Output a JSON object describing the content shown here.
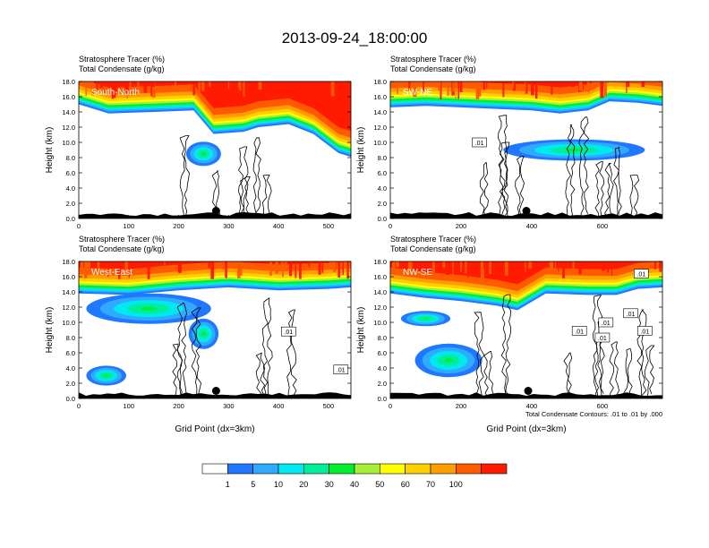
{
  "title": "2013-09-24_18:00:00",
  "colors": {
    "levels": [
      "#ffffff",
      "#1f78ff",
      "#2faaff",
      "#00e8f0",
      "#00ee9a",
      "#00ee2e",
      "#a8ef3a",
      "#ffff00",
      "#ffd000",
      "#ff9e00",
      "#ff5a00",
      "#ff1a00"
    ],
    "contour": "#000000",
    "ground": "#000000"
  },
  "chart_data": [
    {
      "type": "heatmap",
      "label": "South-North",
      "header": [
        "Stratosphere Tracer   (%)",
        "Total Condensate   (g/kg)"
      ],
      "ylabel": "Height (km)",
      "xlabel": "",
      "xlim": [
        0,
        545
      ],
      "ylim": [
        0,
        18
      ],
      "xticks": [
        "0",
        "100",
        "200",
        "300",
        "400",
        "500"
      ],
      "yticks": [
        "0.0",
        "2.0",
        "4.0",
        "6.0",
        "8.0",
        "10.0",
        "12.0",
        "14.0",
        "16.0",
        "18.0"
      ],
      "tropopause_km": [
        [
          0,
          15.4
        ],
        [
          60,
          14.2
        ],
        [
          150,
          14.4
        ],
        [
          230,
          14.6
        ],
        [
          270,
          11.5
        ],
        [
          330,
          11.8
        ],
        [
          360,
          12.4
        ],
        [
          420,
          12.8
        ],
        [
          470,
          11.5
        ],
        [
          520,
          9.0
        ],
        [
          545,
          8.5
        ]
      ],
      "contour_labels": [],
      "blobs": [
        {
          "x": 250,
          "y": 8.5,
          "rx": 35,
          "ry": 1.6
        }
      ],
      "marker": {
        "x": 275,
        "y": 1.0
      }
    },
    {
      "type": "heatmap",
      "label": "SW-NE",
      "header": [
        "Stratosphere Tracer   (%)",
        "Total Condensate   (g/kg)"
      ],
      "ylabel": "Height (km)",
      "xlabel": "",
      "xlim": [
        0,
        770
      ],
      "ylim": [
        0,
        18
      ],
      "xticks": [
        "0",
        "200",
        "400",
        "600"
      ],
      "yticks": [
        "0.0",
        "2.0",
        "4.0",
        "6.0",
        "8.0",
        "10.0",
        "12.0",
        "14.0",
        "16.0",
        "18.0"
      ],
      "tropopause_km": [
        [
          0,
          15.0
        ],
        [
          100,
          15.2
        ],
        [
          200,
          15.0
        ],
        [
          300,
          14.8
        ],
        [
          400,
          14.6
        ],
        [
          480,
          14.2
        ],
        [
          560,
          14.6
        ],
        [
          620,
          15.8
        ],
        [
          700,
          15.6
        ],
        [
          770,
          15.2
        ]
      ],
      "contour_labels": [
        {
          "x": 252,
          "y": 10.0,
          "text": ".01"
        }
      ],
      "blobs": [
        {
          "x": 520,
          "y": 9.0,
          "rx": 200,
          "ry": 1.4
        }
      ],
      "marker": {
        "x": 385,
        "y": 1.0
      }
    },
    {
      "type": "heatmap",
      "label": "West-East",
      "header": [
        "Stratosphere Tracer   (%)",
        "Total Condensate   (g/kg)"
      ],
      "ylabel": "Height (km)",
      "xlabel": "Grid Point (dx=3km)",
      "xlim": [
        0,
        545
      ],
      "ylim": [
        0,
        18
      ],
      "xticks": [
        "0",
        "100",
        "200",
        "300",
        "400",
        "500"
      ],
      "yticks": [
        "0.0",
        "2.0",
        "4.0",
        "6.0",
        "8.0",
        "10.0",
        "12.0",
        "14.0",
        "16.0",
        "18.0"
      ],
      "tropopause_km": [
        [
          0,
          14.2
        ],
        [
          100,
          14.0
        ],
        [
          200,
          14.6
        ],
        [
          300,
          15.0
        ],
        [
          400,
          14.6
        ],
        [
          500,
          14.8
        ],
        [
          545,
          15.0
        ]
      ],
      "contour_labels": [
        {
          "x": 420,
          "y": 8.8,
          "text": ".01"
        },
        {
          "x": 525,
          "y": 3.8,
          "text": ".01"
        }
      ],
      "blobs": [
        {
          "x": 140,
          "y": 11.8,
          "rx": 125,
          "ry": 2.0
        },
        {
          "x": 55,
          "y": 3.0,
          "rx": 40,
          "ry": 1.3
        },
        {
          "x": 250,
          "y": 8.5,
          "rx": 30,
          "ry": 2.0
        }
      ],
      "marker": {
        "x": 275,
        "y": 1.0
      }
    },
    {
      "type": "heatmap",
      "label": "NW-SE",
      "header": [
        "Stratosphere Tracer   (%)",
        "Total Condensate   (g/kg)"
      ],
      "ylabel": "Height (km)",
      "xlabel": "Grid Point (dx=3km)",
      "xlim": [
        0,
        770
      ],
      "ylim": [
        0,
        18
      ],
      "xticks": [
        "0",
        "200",
        "400",
        "600"
      ],
      "yticks": [
        "0.0",
        "2.0",
        "4.0",
        "6.0",
        "8.0",
        "10.0",
        "12.0",
        "14.0",
        "16.0",
        "18.0"
      ],
      "tropopause_km": [
        [
          0,
          14.2
        ],
        [
          100,
          13.6
        ],
        [
          200,
          13.2
        ],
        [
          300,
          12.6
        ],
        [
          360,
          12.0
        ],
        [
          440,
          14.2
        ],
        [
          560,
          14.0
        ],
        [
          640,
          14.0
        ],
        [
          700,
          14.8
        ],
        [
          770,
          15.0
        ]
      ],
      "contour_labels": [
        {
          "x": 535,
          "y": 8.9,
          "text": ".01"
        },
        {
          "x": 610,
          "y": 10.0,
          "text": ".01"
        },
        {
          "x": 600,
          "y": 8.0,
          "text": ".01"
        },
        {
          "x": 710,
          "y": 16.4,
          "text": ".01"
        },
        {
          "x": 720,
          "y": 8.9,
          "text": ".01"
        },
        {
          "x": 680,
          "y": 11.2,
          "text": ".01"
        }
      ],
      "blobs": [
        {
          "x": 165,
          "y": 5.0,
          "rx": 95,
          "ry": 2.2
        },
        {
          "x": 100,
          "y": 10.5,
          "rx": 70,
          "ry": 1.0
        }
      ],
      "marker": {
        "x": 390,
        "y": 1.0
      },
      "note": "Total Condensate Contours: .01 to .01 by .000"
    }
  ],
  "colorbar": {
    "labels": [
      "1",
      "5",
      "10",
      "20",
      "30",
      "40",
      "50",
      "60",
      "70",
      "100"
    ]
  }
}
